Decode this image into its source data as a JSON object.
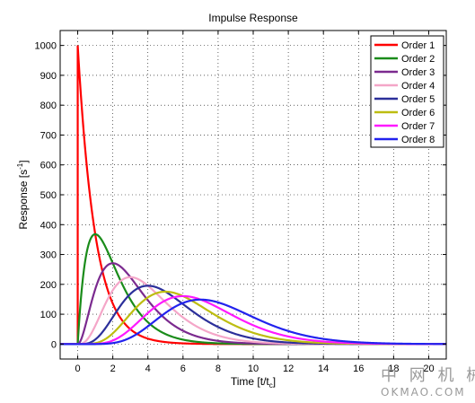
{
  "chart_data": {
    "type": "line",
    "title": "Impulse Response",
    "xlabel": "Time [t/t",
    "xlabel_sub": "c",
    "xlabel_end": "]",
    "ylabel": "Response [s",
    "ylabel_sup": "-1",
    "ylabel_end": "]",
    "xlim": [
      -1,
      21
    ],
    "ylim": [
      -50,
      1050
    ],
    "xticks": [
      0,
      2,
      4,
      6,
      8,
      10,
      12,
      14,
      16,
      18,
      20
    ],
    "yticks": [
      0,
      100,
      200,
      300,
      400,
      500,
      600,
      700,
      800,
      900,
      1000
    ],
    "grid": true,
    "legend_position": "top-right",
    "model": "n-th order impulse response, n/t_c^? scaled gamma with t_c = 1; peak of Order 1 = 1000",
    "series": [
      {
        "name": "Order 1",
        "color": "#ff0000",
        "order": 1
      },
      {
        "name": "Order 2",
        "color": "#1a8c1a",
        "order": 2
      },
      {
        "name": "Order 3",
        "color": "#7b2a8f",
        "order": 3
      },
      {
        "name": "Order 4",
        "color": "#f4a6c8",
        "order": 4
      },
      {
        "name": "Order 5",
        "color": "#2b2f9a",
        "order": 5
      },
      {
        "name": "Order 6",
        "color": "#bdbd10",
        "order": 6
      },
      {
        "name": "Order 7",
        "color": "#ff19ff",
        "order": 7
      },
      {
        "name": "Order 8",
        "color": "#2222ee",
        "order": 8
      }
    ]
  },
  "watermark": {
    "cn": "中 网 机 械",
    "en": "OKMAO.COM"
  }
}
